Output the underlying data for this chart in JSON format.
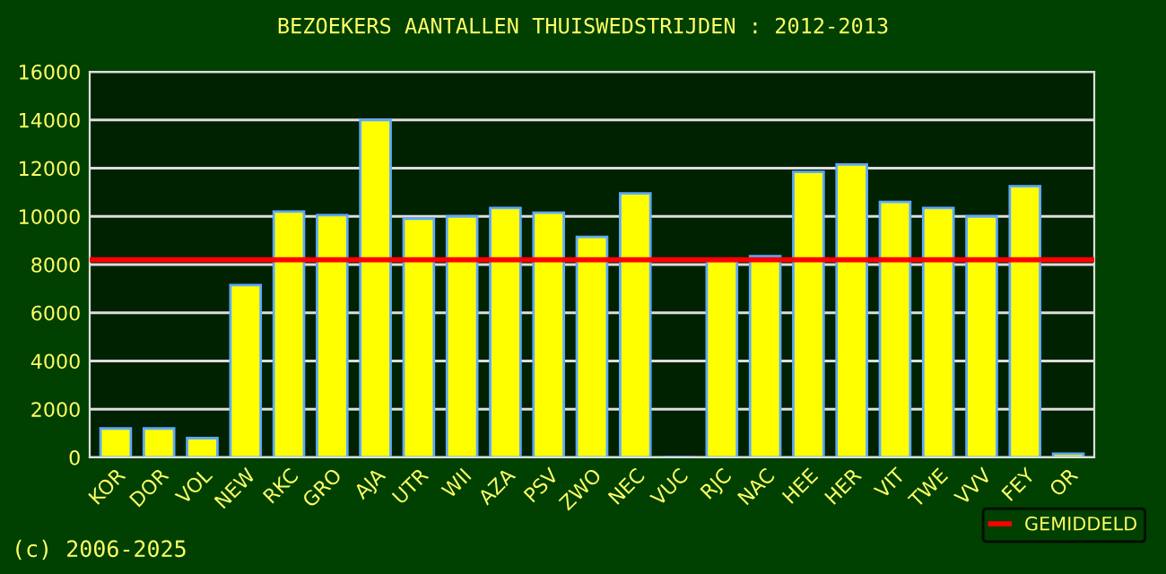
{
  "chart_data": {
    "type": "bar",
    "title": "BEZOEKERS AANTALLEN THUISWEDSTRIJDEN : 2012-2013",
    "categories": [
      "KOR",
      "DOR",
      "VOL",
      "NEW",
      "RKC",
      "GRO",
      "AJA",
      "UTR",
      "WII",
      "AZA",
      "PSV",
      "ZWO",
      "NEC",
      "VUC",
      "RJC",
      "NAC",
      "HEE",
      "HER",
      "VIT",
      "TWE",
      "VVV",
      "FEY",
      "OR"
    ],
    "values": [
      1200,
      1200,
      800,
      7150,
      10200,
      10050,
      14000,
      9900,
      10000,
      10350,
      10150,
      9150,
      10950,
      null,
      8150,
      8350,
      11850,
      12150,
      10600,
      10350,
      10000,
      11250,
      150
    ],
    "color": "#ffff00",
    "ylim": [
      0,
      16000
    ],
    "yticks": [
      0,
      2000,
      4000,
      6000,
      8000,
      10000,
      12000,
      14000,
      16000
    ],
    "grid": "y",
    "ref_lines": [
      {
        "axis": "y",
        "value": 8200,
        "label": "GEMIDDELD",
        "color": "#ff0000"
      }
    ],
    "legend": "bottom right",
    "annotations": [
      "(c) 2006-2025"
    ]
  }
}
